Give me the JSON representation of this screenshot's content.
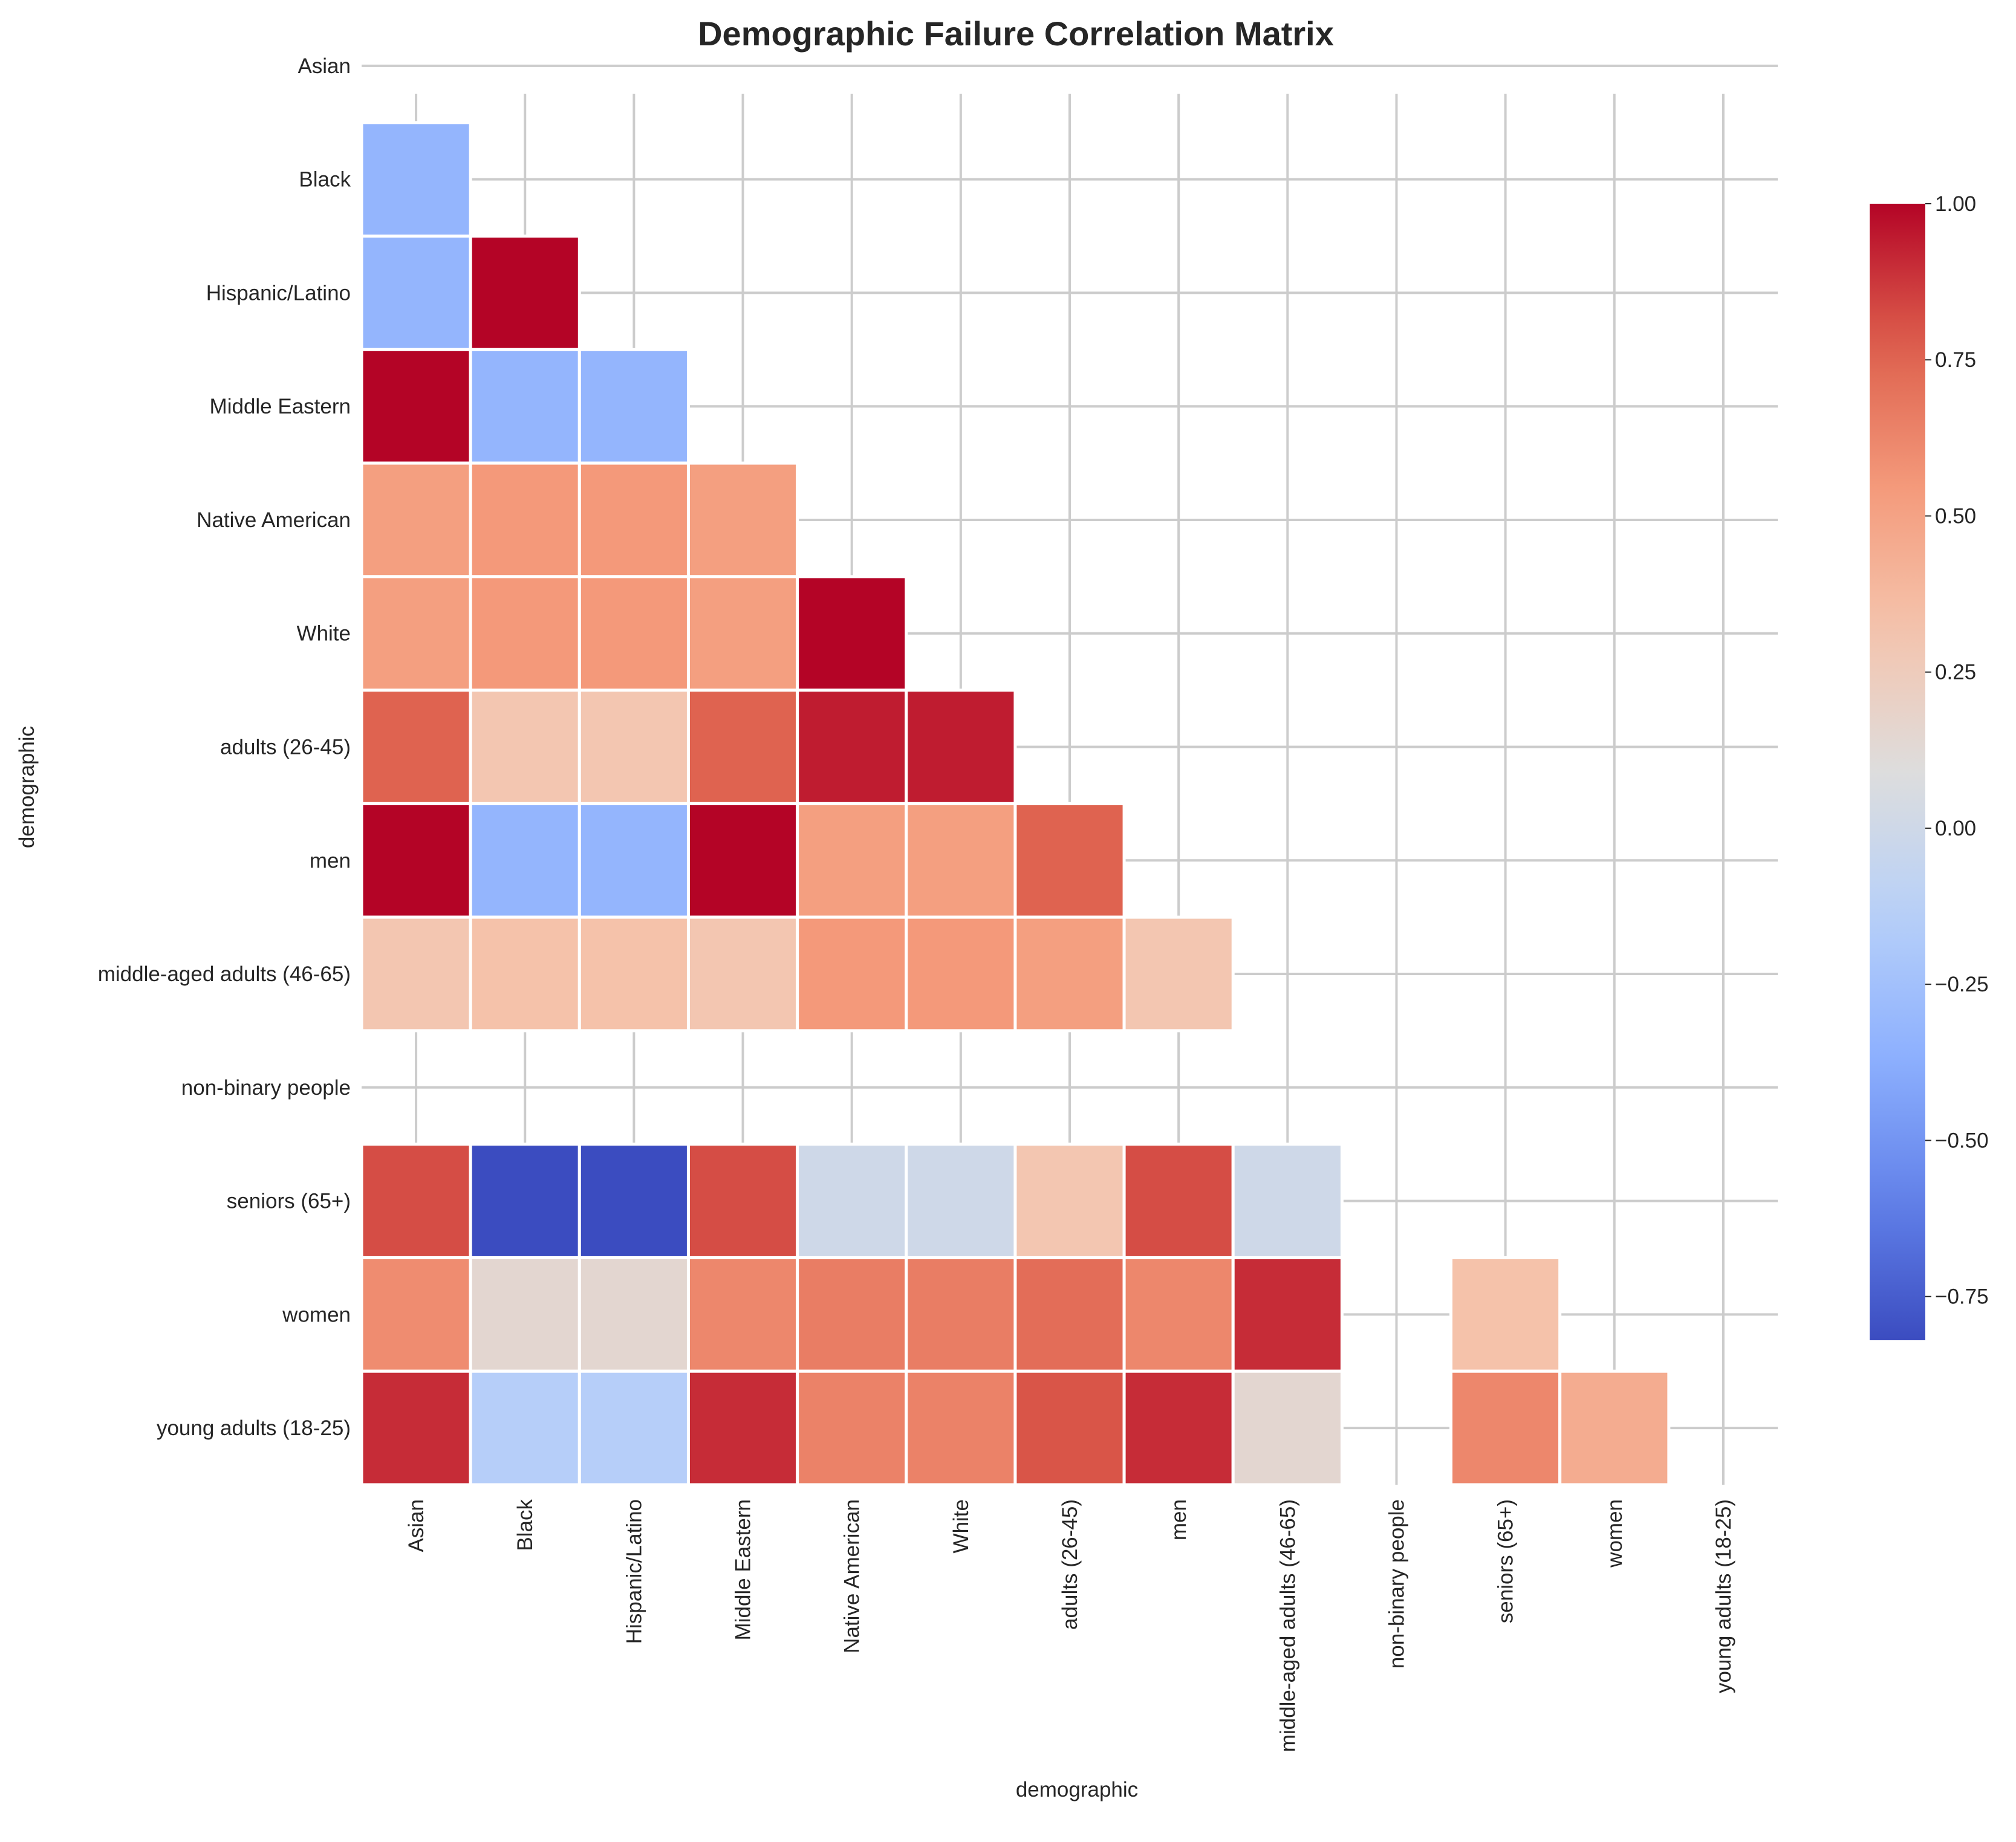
{
  "chart_data": {
    "type": "heatmap",
    "title": "Demographic Failure Correlation Matrix",
    "xlabel": "demographic",
    "ylabel": "demographic",
    "colormap": "coolwarm",
    "vmin": -0.82,
    "vmax": 1.0,
    "mask": "upper triangle including diagonal; rows/columns for non-binary people have no values",
    "grid": true,
    "categories": [
      "Asian",
      "Black",
      "Hispanic/Latino",
      "Middle Eastern",
      "Native American",
      "White",
      "adults (26-45)",
      "men",
      "middle-aged adults (46-65)",
      "non-binary people",
      "seniors (65+)",
      "women",
      "young adults (18-25)"
    ],
    "matrix": [
      [
        null,
        null,
        null,
        null,
        null,
        null,
        null,
        null,
        null,
        null,
        null,
        null,
        null
      ],
      [
        -0.33,
        null,
        null,
        null,
        null,
        null,
        null,
        null,
        null,
        null,
        null,
        null,
        null
      ],
      [
        -0.33,
        1.0,
        null,
        null,
        null,
        null,
        null,
        null,
        null,
        null,
        null,
        null,
        null
      ],
      [
        1.0,
        -0.33,
        -0.33,
        null,
        null,
        null,
        null,
        null,
        null,
        null,
        null,
        null,
        null
      ],
      [
        0.52,
        0.55,
        0.55,
        0.52,
        null,
        null,
        null,
        null,
        null,
        null,
        null,
        null,
        null
      ],
      [
        0.52,
        0.55,
        0.55,
        0.52,
        1.0,
        null,
        null,
        null,
        null,
        null,
        null,
        null,
        null
      ],
      [
        0.76,
        0.3,
        0.3,
        0.76,
        0.94,
        0.94,
        null,
        null,
        null,
        null,
        null,
        null,
        null
      ],
      [
        1.0,
        -0.33,
        -0.33,
        1.0,
        0.52,
        0.52,
        0.76,
        null,
        null,
        null,
        null,
        null,
        null
      ],
      [
        0.3,
        0.33,
        0.33,
        0.3,
        0.55,
        0.55,
        0.52,
        0.3,
        null,
        null,
        null,
        null,
        null
      ],
      [
        null,
        null,
        null,
        null,
        null,
        null,
        null,
        null,
        null,
        null,
        null,
        null,
        null
      ],
      [
        0.82,
        -0.82,
        -0.82,
        0.82,
        0.0,
        0.0,
        0.3,
        0.82,
        0.0,
        null,
        null,
        null,
        null
      ],
      [
        0.6,
        0.15,
        0.15,
        0.62,
        0.66,
        0.66,
        0.72,
        0.62,
        0.9,
        null,
        0.33,
        null,
        null
      ],
      [
        0.9,
        -0.15,
        -0.15,
        0.9,
        0.64,
        0.64,
        0.8,
        0.9,
        0.15,
        null,
        0.62,
        0.45,
        null
      ]
    ],
    "colorbar": {
      "ticks": [
        1.0,
        0.75,
        0.5,
        0.25,
        0.0,
        -0.25,
        -0.5,
        -0.75
      ],
      "tick_labels": [
        "1.00",
        "0.75",
        "0.50",
        "0.25",
        "0.00",
        "−0.25",
        "−0.50",
        "−0.75"
      ]
    }
  }
}
